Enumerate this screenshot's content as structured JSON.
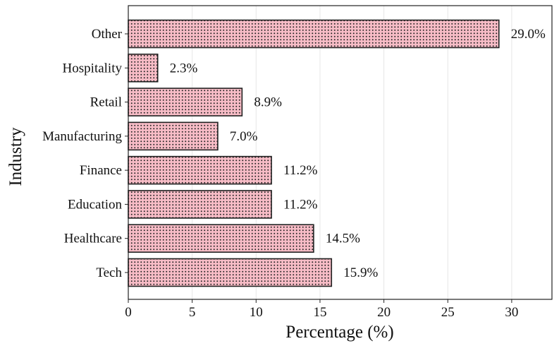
{
  "chart_data": {
    "type": "bar",
    "orientation": "horizontal",
    "categories": [
      "Tech",
      "Healthcare",
      "Education",
      "Finance",
      "Manufacturing",
      "Retail",
      "Hospitality",
      "Other"
    ],
    "values": [
      15.9,
      14.5,
      11.2,
      11.2,
      7.0,
      8.9,
      2.3,
      29.0
    ],
    "data_labels": [
      "15.9%",
      "14.5%",
      "11.2%",
      "11.2%",
      "7.0%",
      "8.9%",
      "2.3%",
      "29.0%"
    ],
    "xlabel": "Percentage (%)",
    "ylabel": "Industry",
    "xlim": [
      0,
      33.15
    ],
    "xticks": [
      0,
      5,
      10,
      15,
      20,
      25,
      30
    ],
    "grid": "vertical major",
    "bar_fill": "#f7bcc6",
    "bar_pattern": "dots",
    "pattern_color": "#222222",
    "bar_edge": "#222222"
  }
}
